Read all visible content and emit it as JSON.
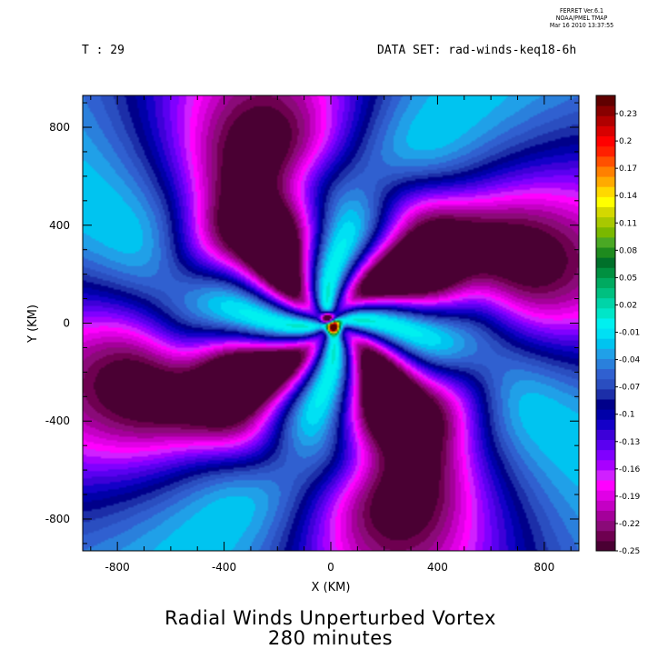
{
  "header": {
    "ferret_lines": [
      "FERRET  Ver.6.1",
      "NOAA/PMEL TMAP",
      "Mar 16 2010 13:37:55"
    ],
    "time_label": "T : 29",
    "dataset_label": "DATA SET: rad-winds-keq18-6h"
  },
  "chart_data": {
    "type": "heatmap",
    "title": "Radial Winds Unperturbed Vortex",
    "subtitle": "280 minutes",
    "xlabel": "X (KM)",
    "ylabel": "Y (KM)",
    "xlim": [
      -930,
      930
    ],
    "ylim": [
      -930,
      930
    ],
    "x_ticks": [
      -800,
      -400,
      0,
      400,
      800
    ],
    "y_ticks": [
      -800,
      -400,
      0,
      400,
      800
    ],
    "grid": false,
    "colorbar": {
      "placement": "right",
      "range": [
        -0.25,
        0.25
      ],
      "labels": [
        "-0.25",
        "-0.22",
        "-0.19",
        "-0.16",
        "-0.13",
        "-0.1",
        "-0.07",
        "-0.04",
        "-0.01",
        "0.02",
        "0.05",
        "0.08",
        "0.11",
        "0.14",
        "0.17",
        "0.2",
        "0.23"
      ],
      "colors": [
        "#4a0033",
        "#6e0050",
        "#8a0a78",
        "#a4009a",
        "#c400c4",
        "#e000e6",
        "#ff00ff",
        "#d020ff",
        "#a800ff",
        "#8000ff",
        "#5a00f0",
        "#3d00d8",
        "#1400c8",
        "#0000a8",
        "#00008a",
        "#1c2ea8",
        "#2a4ec0",
        "#3060d0",
        "#2a80dc",
        "#20a0e8",
        "#00c4f0",
        "#00e0f4",
        "#00f0f0",
        "#00e6c8",
        "#00d4a8",
        "#00c080",
        "#00aa60",
        "#009040",
        "#00702a",
        "#1e8a1e",
        "#4aa824",
        "#7ab800",
        "#a8c800",
        "#d4d800",
        "#ffff00",
        "#ffd800",
        "#ffaa00",
        "#ff8000",
        "#ff5000",
        "#ff2000",
        "#ff0000",
        "#d80000",
        "#b00000",
        "#880000",
        "#600000"
      ]
    }
  }
}
